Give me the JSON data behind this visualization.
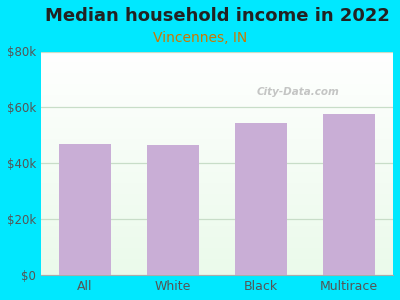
{
  "title": "Median household income in 2022",
  "subtitle": "Vincennes, IN",
  "categories": [
    "All",
    "White",
    "Black",
    "Multirace"
  ],
  "values": [
    47000,
    46500,
    54500,
    57500
  ],
  "bar_color": "#c9aed6",
  "title_fontsize": 13,
  "subtitle_fontsize": 10,
  "subtitle_color": "#cc7700",
  "tick_color": "#555555",
  "label_color": "#555555",
  "background_outer": "#00e8ff",
  "ylim": [
    0,
    80000
  ],
  "yticks": [
    0,
    20000,
    40000,
    60000,
    80000
  ],
  "ytick_labels": [
    "$0",
    "$20k",
    "$40k",
    "$60k",
    "$80k"
  ],
  "grid_color": "#c8ddc8",
  "watermark": "City-Data.com"
}
